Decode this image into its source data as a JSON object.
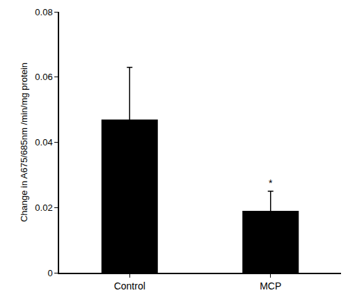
{
  "chart_data": {
    "type": "bar",
    "y_label": "Change in A675/685nm /min/mg protein",
    "categories": [
      "Control",
      "MCP"
    ],
    "values": [
      0.047,
      0.019
    ],
    "errors": [
      0.016,
      0.006
    ],
    "color": "#000000",
    "ylim": [
      0,
      0.08
    ],
    "yticks": [
      0,
      0.02,
      0.04,
      0.06,
      0.08
    ],
    "grid": false,
    "annotations": [
      {
        "text": "*",
        "category": "MCP"
      }
    ]
  }
}
